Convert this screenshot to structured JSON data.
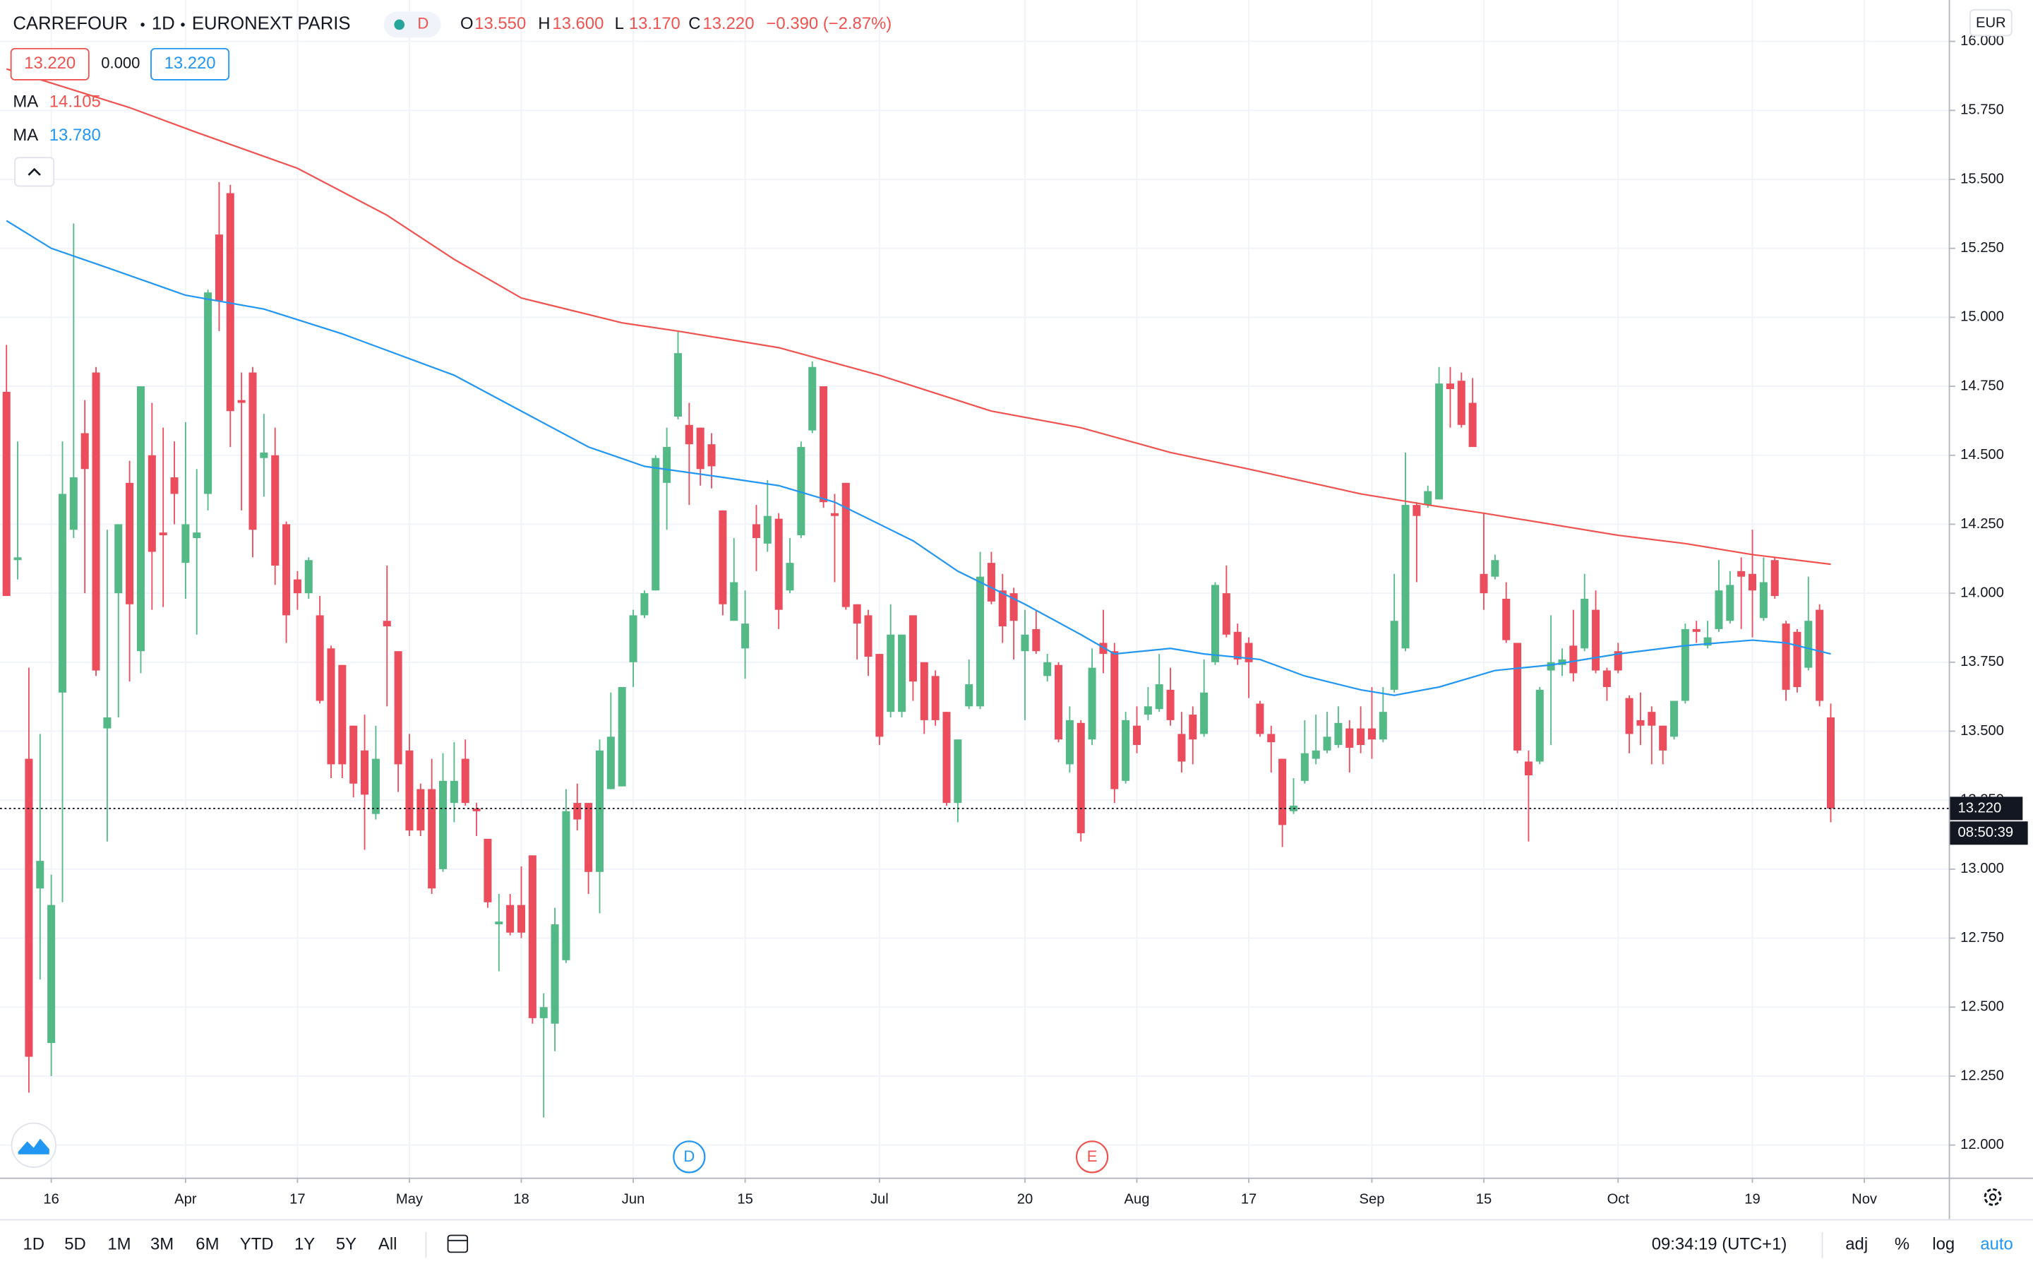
{
  "header": {
    "symbol": "CARREFOUR",
    "interval": "1D",
    "exchange": "EURONEXT PARIS",
    "badge": "D",
    "ohlc": [
      {
        "label": "O",
        "value": "13.550"
      },
      {
        "label": "H",
        "value": "13.600"
      },
      {
        "label": "L",
        "value": "13.170"
      },
      {
        "label": "C",
        "value": "13.220"
      }
    ],
    "change": "−0.390 (−2.87%)"
  },
  "legend": {
    "values": [
      "13.220",
      "0.000",
      "13.220"
    ]
  },
  "chart_data": {
    "type": "candlestick",
    "up_color": "#53b987",
    "down_color": "#eb4d5c",
    "grid": true,
    "currency": "EUR",
    "last_price_label": "13.220",
    "countdown": "08:50:39",
    "xlim": [
      -0.58,
      173.54
    ],
    "xticks": [
      {
        "value": 4,
        "label": "16"
      },
      {
        "value": 16,
        "label": "Apr"
      },
      {
        "value": 26,
        "label": "17"
      },
      {
        "value": 36,
        "label": "May"
      },
      {
        "value": 46,
        "label": "18"
      },
      {
        "value": 56,
        "label": "Jun"
      },
      {
        "value": 66,
        "label": "15"
      },
      {
        "value": 78,
        "label": "Jul"
      },
      {
        "value": 91,
        "label": "20"
      },
      {
        "value": 101,
        "label": "Aug"
      },
      {
        "value": 111,
        "label": "17"
      },
      {
        "value": 122,
        "label": "Sep"
      },
      {
        "value": 132,
        "label": "15"
      },
      {
        "value": 144,
        "label": "Oct"
      },
      {
        "value": 156,
        "label": "19"
      },
      {
        "value": 166,
        "label": "Nov"
      }
    ],
    "ylim": [
      11.882,
      16.15
    ],
    "yticks": [
      {
        "value": 16,
        "label": "16.000"
      },
      {
        "value": 15.75,
        "label": "15.750"
      },
      {
        "value": 15.5,
        "label": "15.500"
      },
      {
        "value": 15.25,
        "label": "15.250"
      },
      {
        "value": 15,
        "label": "15.000"
      },
      {
        "value": 14.75,
        "label": "14.750"
      },
      {
        "value": 14.5,
        "label": "14.500"
      },
      {
        "value": 14.25,
        "label": "14.250"
      },
      {
        "value": 14,
        "label": "14.000"
      },
      {
        "value": 13.75,
        "label": "13.750"
      },
      {
        "value": 13.5,
        "label": "13.500"
      },
      {
        "value": 13.25,
        "label": "13.250"
      },
      {
        "value": 13,
        "label": "13.000"
      },
      {
        "value": 12.75,
        "label": "12.750"
      },
      {
        "value": 12.5,
        "label": "12.500"
      },
      {
        "value": 12.25,
        "label": "12.250"
      },
      {
        "value": 12,
        "label": "12.000"
      }
    ],
    "open": [
      14.73,
      14.12,
      13.4,
      12.93,
      12.37,
      13.64,
      14.23,
      14.58,
      14.8,
      13.51,
      14.0,
      14.4,
      13.79,
      14.5,
      14.22,
      14.42,
      14.11,
      14.2,
      14.36,
      15.3,
      15.45,
      14.7,
      14.8,
      14.49,
      14.5,
      14.25,
      14.05,
      14.0,
      13.92,
      13.8,
      13.74,
      13.52,
      13.43,
      13.2,
      13.9,
      13.79,
      13.43,
      13.29,
      13.29,
      13.0,
      13.24,
      13.4,
      13.22,
      13.11,
      12.8,
      12.87,
      12.87,
      13.05,
      12.46,
      12.44,
      12.67,
      13.24,
      13.24,
      12.99,
      13.29,
      13.3,
      13.75,
      13.92,
      14.01,
      14.4,
      14.64,
      14.61,
      14.6,
      14.54,
      14.3,
      13.9,
      13.8,
      14.25,
      14.18,
      14.27,
      14.01,
      14.21,
      14.59,
      14.75,
      14.29,
      14.4,
      13.96,
      13.92,
      13.78,
      13.57,
      13.57,
      13.92,
      13.75,
      13.7,
      13.57,
      13.24,
      13.59,
      13.59,
      14.11,
      14.01,
      14.0,
      13.79,
      13.87,
      13.7,
      13.74,
      13.38,
      13.53,
      13.47,
      13.82,
      13.79,
      13.32,
      13.52,
      13.56,
      13.58,
      13.65,
      13.49,
      13.56,
      13.49,
      13.75,
      14.0,
      13.86,
      13.82,
      13.6,
      13.49,
      13.4,
      13.21,
      13.32,
      13.4,
      13.43,
      13.45,
      13.51,
      13.51,
      13.51,
      13.47,
      13.65,
      13.8,
      14.32,
      14.32,
      14.34,
      14.76,
      14.77,
      14.69,
      14.07,
      14.06,
      13.98,
      13.82,
      13.39,
      13.39,
      13.72,
      13.74,
      13.81,
      13.8,
      13.94,
      13.72,
      13.79,
      13.62,
      13.54,
      13.57,
      13.52,
      13.48,
      13.61,
      13.87,
      13.81,
      13.87,
      13.9,
      14.08,
      14.07,
      13.91,
      14.12,
      13.89,
      13.86,
      13.73,
      13.94,
      13.55
    ],
    "high": [
      14.9,
      14.55,
      13.73,
      13.49,
      12.98,
      14.55,
      15.34,
      14.7,
      14.82,
      14.23,
      14.25,
      14.48,
      14.75,
      14.69,
      14.6,
      14.55,
      14.62,
      14.45,
      15.1,
      15.49,
      15.48,
      14.8,
      14.82,
      14.65,
      14.6,
      14.26,
      14.08,
      14.13,
      13.99,
      13.81,
      13.74,
      13.52,
      13.56,
      13.52,
      14.1,
      13.79,
      13.49,
      13.31,
      13.4,
      13.42,
      13.46,
      13.47,
      13.24,
      13.11,
      12.91,
      12.91,
      13.01,
      13.05,
      12.55,
      12.86,
      13.29,
      13.31,
      13.24,
      13.47,
      13.64,
      13.66,
      13.94,
      14.01,
      14.5,
      14.6,
      14.95,
      14.69,
      14.6,
      14.58,
      14.3,
      14.2,
      14.01,
      14.32,
      14.41,
      14.29,
      14.2,
      14.55,
      14.84,
      14.75,
      14.36,
      14.4,
      13.96,
      13.94,
      13.78,
      13.96,
      13.85,
      13.92,
      13.75,
      13.72,
      13.57,
      13.47,
      13.76,
      14.15,
      14.15,
      14.07,
      14.02,
      13.94,
      13.94,
      13.78,
      13.75,
      13.59,
      13.54,
      13.8,
      13.94,
      13.82,
      13.57,
      13.59,
      13.66,
      13.78,
      13.73,
      13.57,
      13.59,
      13.76,
      14.04,
      14.1,
      13.89,
      13.84,
      13.61,
      13.52,
      13.4,
      13.33,
      13.54,
      13.56,
      13.57,
      13.59,
      13.54,
      13.59,
      13.66,
      13.66,
      14.07,
      14.51,
      14.33,
      14.39,
      14.82,
      14.82,
      14.8,
      14.78,
      14.29,
      14.14,
      14.04,
      13.82,
      13.43,
      13.66,
      13.92,
      13.8,
      13.94,
      14.07,
      14.01,
      13.73,
      13.82,
      13.63,
      13.64,
      13.59,
      13.52,
      13.61,
      13.89,
      13.9,
      13.9,
      14.12,
      14.08,
      14.13,
      14.23,
      14.13,
      14.13,
      13.9,
      13.87,
      14.06,
      13.96,
      13.6
    ],
    "low": [
      13.99,
      14.05,
      12.19,
      12.6,
      12.25,
      12.88,
      14.2,
      14.0,
      13.7,
      13.1,
      13.55,
      13.68,
      13.71,
      13.94,
      13.95,
      14.25,
      13.98,
      13.85,
      14.3,
      14.95,
      14.53,
      14.3,
      14.13,
      14.35,
      14.03,
      13.82,
      13.94,
      13.98,
      13.6,
      13.33,
      13.33,
      13.26,
      13.07,
      13.18,
      13.59,
      13.28,
      13.12,
      13.12,
      12.91,
      12.99,
      13.17,
      13.23,
      13.12,
      12.86,
      12.63,
      12.76,
      12.75,
      12.44,
      12.1,
      12.34,
      12.66,
      13.14,
      12.91,
      12.84,
      13.29,
      13.3,
      13.66,
      13.91,
      14.01,
      14.23,
      14.63,
      14.32,
      14.39,
      14.38,
      13.92,
      13.9,
      13.69,
      14.08,
      14.15,
      13.87,
      14.0,
      14.2,
      14.58,
      14.31,
      14.04,
      13.94,
      13.76,
      13.7,
      13.45,
      13.55,
      13.55,
      13.61,
      13.49,
      13.52,
      13.23,
      13.17,
      13.58,
      13.58,
      13.96,
      13.82,
      13.76,
      13.54,
      13.78,
      13.68,
      13.46,
      13.35,
      13.1,
      13.45,
      13.71,
      13.24,
      13.31,
      13.42,
      13.54,
      13.57,
      13.52,
      13.35,
      13.38,
      13.48,
      13.74,
      13.84,
      13.74,
      13.62,
      13.48,
      13.35,
      13.08,
      13.2,
      13.31,
      13.38,
      13.42,
      13.44,
      13.35,
      13.42,
      13.4,
      13.46,
      13.64,
      13.79,
      14.04,
      14.31,
      14.34,
      14.6,
      14.6,
      14.53,
      13.94,
      14.05,
      13.82,
      13.42,
      13.1,
      13.38,
      13.45,
      13.7,
      13.68,
      13.79,
      13.71,
      13.61,
      13.71,
      13.42,
      13.45,
      13.38,
      13.38,
      13.47,
      13.6,
      13.82,
      13.8,
      13.86,
      13.89,
      13.87,
      13.84,
      13.9,
      13.98,
      13.61,
      13.64,
      13.72,
      13.59,
      13.17
    ],
    "close": [
      13.99,
      14.13,
      12.32,
      13.03,
      12.87,
      14.36,
      14.42,
      14.45,
      13.72,
      13.55,
      14.25,
      13.96,
      14.75,
      14.15,
      14.21,
      14.36,
      14.25,
      14.22,
      15.09,
      15.06,
      14.66,
      14.69,
      14.23,
      14.51,
      14.1,
      13.92,
      14.0,
      14.12,
      13.61,
      13.38,
      13.38,
      13.31,
      13.27,
      13.4,
      13.88,
      13.38,
      13.14,
      13.14,
      12.93,
      13.32,
      13.32,
      13.24,
      13.21,
      12.88,
      12.81,
      12.77,
      12.77,
      12.46,
      12.5,
      12.8,
      13.21,
      13.18,
      12.99,
      13.43,
      13.48,
      13.66,
      13.92,
      14.0,
      14.49,
      14.53,
      14.87,
      14.54,
      14.45,
      14.46,
      13.96,
      14.04,
      13.89,
      14.2,
      14.28,
      13.94,
      14.11,
      14.53,
      14.82,
      14.33,
      14.28,
      13.95,
      13.89,
      13.77,
      13.48,
      13.85,
      13.85,
      13.68,
      13.54,
      13.54,
      13.24,
      13.47,
      13.67,
      14.06,
      13.97,
      13.88,
      13.9,
      13.85,
      13.79,
      13.75,
      13.47,
      13.54,
      13.13,
      13.73,
      13.78,
      13.29,
      13.54,
      13.45,
      13.59,
      13.67,
      13.54,
      13.39,
      13.47,
      13.64,
      14.03,
      13.85,
      13.76,
      13.75,
      13.49,
      13.46,
      13.16,
      13.23,
      13.42,
      13.43,
      13.48,
      13.53,
      13.44,
      13.45,
      13.47,
      13.57,
      13.9,
      14.32,
      14.28,
      14.37,
      14.76,
      14.74,
      14.61,
      14.53,
      14.0,
      14.12,
      13.83,
      13.43,
      13.34,
      13.65,
      13.75,
      13.76,
      13.71,
      13.98,
      13.72,
      13.66,
      13.72,
      13.49,
      13.52,
      13.52,
      13.43,
      13.61,
      13.87,
      13.86,
      13.84,
      14.01,
      14.03,
      14.06,
      14.01,
      14.04,
      13.99,
      13.65,
      13.66,
      13.9,
      13.61,
      13.22
    ],
    "series": [
      {
        "name": "MA",
        "color": "#f0524f",
        "value_label": "14.105",
        "x": [
          0,
          11,
          17,
          26,
          34,
          40,
          46,
          55,
          60,
          69,
          78,
          88,
          96,
          104,
          111,
          121,
          127,
          132,
          144,
          150,
          156,
          163
        ],
        "values": [
          15.9,
          15.76,
          15.67,
          15.54,
          15.37,
          15.21,
          15.07,
          14.98,
          14.95,
          14.89,
          14.79,
          14.66,
          14.6,
          14.51,
          14.45,
          14.36,
          14.32,
          14.29,
          14.21,
          14.18,
          14.14,
          14.105
        ]
      },
      {
        "name": "MA",
        "color": "#2196f3",
        "value_label": "13.780",
        "x": [
          0,
          4,
          9,
          16,
          23,
          30,
          34,
          40,
          46,
          52,
          57,
          64,
          69,
          74,
          81,
          85,
          91,
          96,
          99,
          104,
          107,
          112,
          116,
          121,
          124,
          128,
          133,
          138,
          144,
          150,
          156,
          159,
          163
        ],
        "values": [
          15.35,
          15.25,
          15.18,
          15.08,
          15.03,
          14.94,
          14.88,
          14.79,
          14.66,
          14.53,
          14.46,
          14.42,
          14.39,
          14.33,
          14.19,
          14.08,
          13.96,
          13.85,
          13.78,
          13.8,
          13.78,
          13.76,
          13.7,
          13.65,
          13.63,
          13.66,
          13.72,
          13.74,
          13.78,
          13.81,
          13.83,
          13.82,
          13.78
        ]
      }
    ],
    "events": [
      {
        "label": "D",
        "x": 61,
        "color": "#2196f3"
      },
      {
        "label": "E",
        "x": 97,
        "color": "#ef5350"
      }
    ]
  },
  "toolbar": {
    "ranges": [
      "1D",
      "5D",
      "1M",
      "3M",
      "6M",
      "YTD",
      "1Y",
      "5Y",
      "All"
    ],
    "clock": "09:34:19 (UTC+1)",
    "options": [
      "adj",
      "%",
      "log",
      "auto"
    ]
  }
}
